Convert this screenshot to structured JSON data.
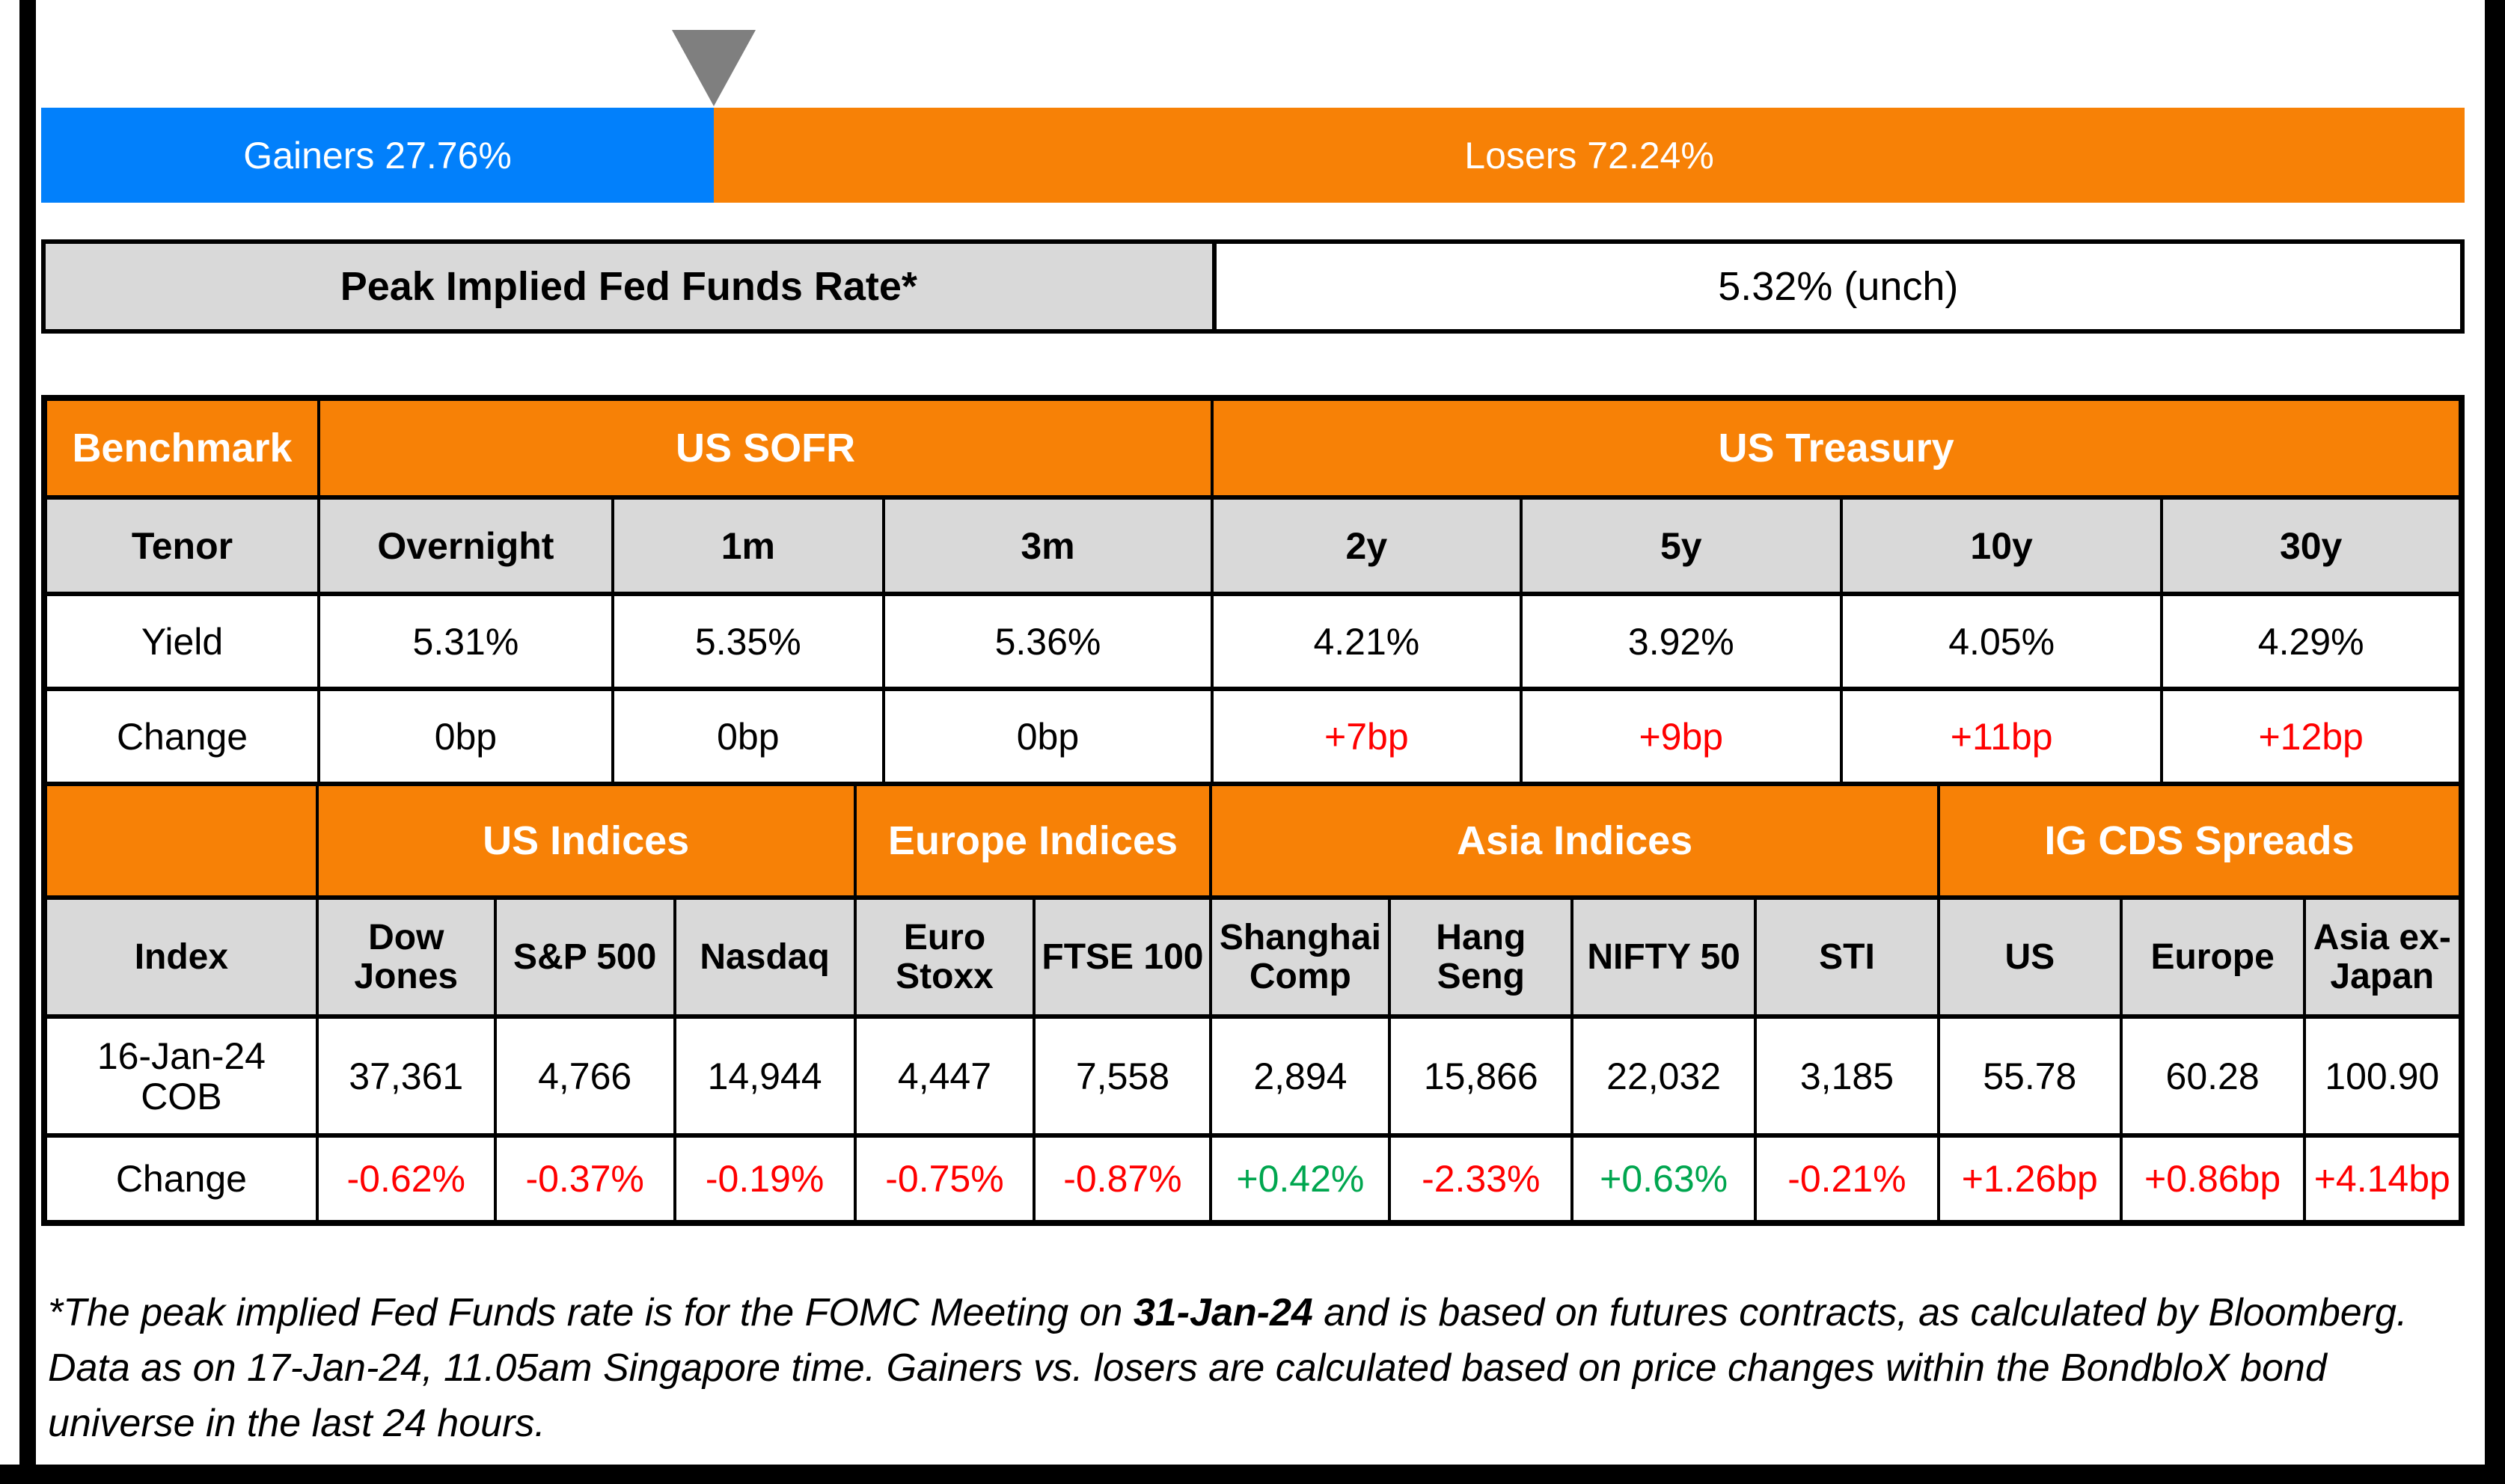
{
  "top_bar": {
    "gainers_label": "Gainers 27.76%",
    "losers_label": "Losers 72.24%",
    "gainers_pct": 27.76,
    "losers_pct": 72.24
  },
  "peak_rate": {
    "label": "Peak Implied Fed Funds Rate*",
    "value": "5.32% (unch)"
  },
  "benchmark_table": {
    "header": {
      "col1": "Benchmark",
      "sofr": "US SOFR",
      "treasury": "US Treasury"
    },
    "tenor_row": [
      "Tenor",
      "Overnight",
      "1m",
      "3m",
      "2y",
      "5y",
      "10y",
      "30y"
    ],
    "yield_row": [
      "Yield",
      "5.31%",
      "5.35%",
      "5.36%",
      "4.21%",
      "3.92%",
      "4.05%",
      "4.29%"
    ],
    "change_row": [
      "Change",
      "0bp",
      "0bp",
      "0bp",
      "+7bp",
      "+9bp",
      "+11bp",
      "+12bp"
    ]
  },
  "indices_table": {
    "header": {
      "us": "US Indices",
      "europe": "Europe Indices",
      "asia": "Asia Indices",
      "cds": "IG CDS Spreads"
    },
    "index_row": [
      "Index",
      "Dow Jones",
      "S&P 500",
      "Nasdaq",
      "Euro Stoxx",
      "FTSE 100",
      "Shanghai Comp",
      "Hang Seng",
      "NIFTY 50",
      "STI",
      "US",
      "Europe",
      "Asia ex-Japan"
    ],
    "cob_row": [
      "16-Jan-24 COB",
      "37,361",
      "4,766",
      "14,944",
      "4,447",
      "7,558",
      "2,894",
      "15,866",
      "22,032",
      "3,185",
      "55.78",
      "60.28",
      "100.90"
    ],
    "change_row": [
      "Change",
      "-0.62%",
      "-0.37%",
      "-0.19%",
      "-0.75%",
      "-0.87%",
      "+0.42%",
      "-2.33%",
      "+0.63%",
      "-0.21%",
      "+1.26bp",
      "+0.86bp",
      "+4.14bp"
    ]
  },
  "footnote": {
    "part1": "*The peak implied Fed Funds rate is for the FOMC Meeting on ",
    "bold_date": "31-Jan-24",
    "part2": " and is based on futures contracts, as calculated by Bloomberg. Data as on 17-Jan-24, 11.05am Singapore time. Gainers vs. losers are calculated based on price changes within the BondbloX bond universe in the last 24 hours."
  },
  "colors": {
    "gainers_blue": "#0280FB",
    "losers_orange": "#F78106",
    "header_orange": "#F78106",
    "header_gray": "#D9D9D9",
    "marker_gray": "#7F7F7F",
    "negative_red": "#FF0000",
    "positive_green": "#00A64F"
  },
  "chart_data": [
    {
      "type": "bar",
      "title": "Gainers vs Losers (BondbloX bond universe, last 24 hours)",
      "categories": [
        "Gainers",
        "Losers"
      ],
      "values": [
        27.76,
        72.24
      ],
      "unit": "%",
      "orientation": "horizontal-stacked",
      "colors": [
        "#0280FB",
        "#F78106"
      ]
    },
    {
      "type": "table",
      "title": "Benchmark",
      "groups": {
        "US SOFR": [
          "Overnight",
          "1m",
          "3m"
        ],
        "US Treasury": [
          "2y",
          "5y",
          "10y",
          "30y"
        ]
      },
      "columns": [
        "Tenor",
        "Overnight",
        "1m",
        "3m",
        "2y",
        "5y",
        "10y",
        "30y"
      ],
      "rows": [
        [
          "Yield",
          "5.31%",
          "5.35%",
          "5.36%",
          "4.21%",
          "3.92%",
          "4.05%",
          "4.29%"
        ],
        [
          "Change",
          "0bp",
          "0bp",
          "0bp",
          "+7bp",
          "+9bp",
          "+11bp",
          "+12bp"
        ]
      ]
    },
    {
      "type": "table",
      "title": "Indices and IG CDS Spreads",
      "groups": {
        "US Indices": [
          "Dow Jones",
          "S&P 500",
          "Nasdaq"
        ],
        "Europe Indices": [
          "Euro Stoxx",
          "FTSE 100"
        ],
        "Asia Indices": [
          "Shanghai Comp",
          "Hang Seng",
          "NIFTY 50",
          "STI"
        ],
        "IG CDS Spreads": [
          "US",
          "Europe",
          "Asia ex-Japan"
        ]
      },
      "columns": [
        "Index",
        "Dow Jones",
        "S&P 500",
        "Nasdaq",
        "Euro Stoxx",
        "FTSE 100",
        "Shanghai Comp",
        "Hang Seng",
        "NIFTY 50",
        "STI",
        "US",
        "Europe",
        "Asia ex-Japan"
      ],
      "rows": [
        [
          "16-Jan-24 COB",
          "37,361",
          "4,766",
          "14,944",
          "4,447",
          "7,558",
          "2,894",
          "15,866",
          "22,032",
          "3,185",
          "55.78",
          "60.28",
          "100.90"
        ],
        [
          "Change",
          "-0.62%",
          "-0.37%",
          "-0.19%",
          "-0.75%",
          "-0.87%",
          "+0.42%",
          "-2.33%",
          "+0.63%",
          "-0.21%",
          "+1.26bp",
          "+0.86bp",
          "+4.14bp"
        ]
      ]
    }
  ]
}
